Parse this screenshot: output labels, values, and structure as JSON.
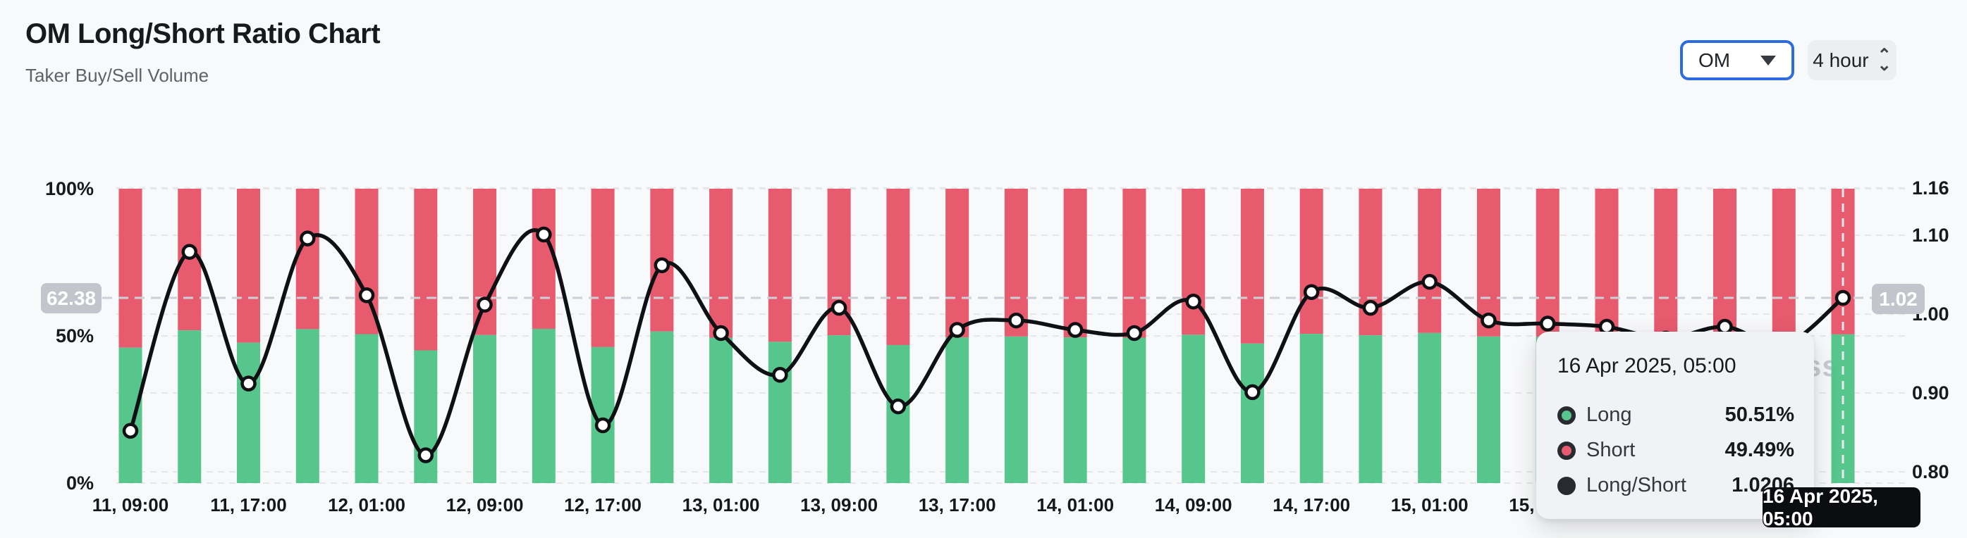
{
  "header": {
    "title": "OM Long/Short Ratio Chart",
    "subtitle": "Taker Buy/Sell Volume"
  },
  "controls": {
    "symbol_select": {
      "value": "OM"
    },
    "interval_select": {
      "value": "4 hour"
    }
  },
  "watermark_fragment": "ss",
  "colors": {
    "long": "#57c68c",
    "short": "#e85a6e",
    "ratio_line": "#0e1013",
    "grid": "#e5e7ea",
    "tracking_dash": "#cdd0d6",
    "accent_blue": "#2d6ce0",
    "pill_gray": "#c2c6cc"
  },
  "chart_data": {
    "type": "combo_stacked_bar_line",
    "title": "OM Long/Short Ratio Chart",
    "categories": [
      "11, 09:00",
      "11, 13:00",
      "11, 17:00",
      "11, 21:00",
      "12, 01:00",
      "12, 05:00",
      "12, 09:00",
      "12, 13:00",
      "12, 17:00",
      "12, 21:00",
      "13, 01:00",
      "13, 05:00",
      "13, 09:00",
      "13, 13:00",
      "13, 17:00",
      "13, 21:00",
      "14, 01:00",
      "14, 05:00",
      "14, 09:00",
      "14, 13:00",
      "14, 17:00",
      "14, 21:00",
      "15, 01:00",
      "15, 05:00",
      "15, 09:00",
      "15, 13:00",
      "15, 17:00",
      "15, 21:00",
      "16, 01:00",
      "16, 05:00"
    ],
    "x_tick_labels": [
      "11, 09:00",
      "11, 17:00",
      "12, 01:00",
      "12, 09:00",
      "12, 17:00",
      "13, 01:00",
      "13, 09:00",
      "13, 17:00",
      "14, 01:00",
      "14, 09:00",
      "14, 17:00",
      "15, 01:00",
      "15, 09:00",
      "15, 17:00",
      "16, 01:00"
    ],
    "series": [
      {
        "name": "Long",
        "unit": "%",
        "color": "#57c68c",
        "values": [
          46.0,
          51.9,
          47.7,
          52.3,
          50.6,
          45.1,
          50.3,
          52.4,
          46.2,
          51.5,
          49.4,
          48.0,
          50.2,
          46.9,
          49.5,
          49.8,
          49.5,
          49.4,
          50.4,
          47.4,
          50.7,
          50.2,
          51.0,
          49.8,
          49.7,
          49.6,
          49.2,
          49.6,
          49.0,
          50.51
        ]
      },
      {
        "name": "Short",
        "unit": "%",
        "color": "#e85a6e",
        "values": [
          54.0,
          48.1,
          52.3,
          47.7,
          49.4,
          54.9,
          49.7,
          47.6,
          53.8,
          48.5,
          50.6,
          52.0,
          49.8,
          53.1,
          50.5,
          50.2,
          50.5,
          50.6,
          49.6,
          52.6,
          49.3,
          49.8,
          49.0,
          50.2,
          50.3,
          50.4,
          50.8,
          50.4,
          51.0,
          49.49
        ]
      },
      {
        "name": "Long/Short",
        "axis": "right",
        "color": "#0e1013",
        "values": [
          0.852,
          1.079,
          0.912,
          1.096,
          1.024,
          0.821,
          1.012,
          1.101,
          0.859,
          1.062,
          0.976,
          0.923,
          1.008,
          0.883,
          0.98,
          0.992,
          0.98,
          0.976,
          1.016,
          0.901,
          1.028,
          1.008,
          1.041,
          0.992,
          0.988,
          0.984,
          0.969,
          0.984,
          0.961,
          1.0206
        ]
      }
    ],
    "left_axis": {
      "ticks": [
        "100%",
        "50%",
        "0%"
      ],
      "tick_values": [
        100,
        50,
        0
      ],
      "range": [
        0,
        100
      ]
    },
    "right_axis": {
      "ticks": [
        "1.16",
        "1.10",
        "1.00",
        "0.90",
        "0.80"
      ],
      "tick_values": [
        1.16,
        1.1,
        1.0,
        0.9,
        0.8
      ],
      "range": [
        0.795,
        1.165
      ]
    },
    "tracking_line": {
      "left_label": "62.38",
      "right_label": "1.02",
      "value": 1.0206
    },
    "selected_index": 29,
    "grid": true,
    "legend_position": "none"
  },
  "tooltip": {
    "title": "16 Apr 2025, 05:00",
    "rows": [
      {
        "label": "Long",
        "value": "50.51%",
        "bullet_color": "#57c68c"
      },
      {
        "label": "Short",
        "value": "49.49%",
        "bullet_color": "#e85a6e"
      },
      {
        "label": "Long/Short",
        "value": "1.0206",
        "bullet_color": "#272b30"
      }
    ]
  },
  "x_axis_cursor_label": "16 Apr 2025, 05:00"
}
